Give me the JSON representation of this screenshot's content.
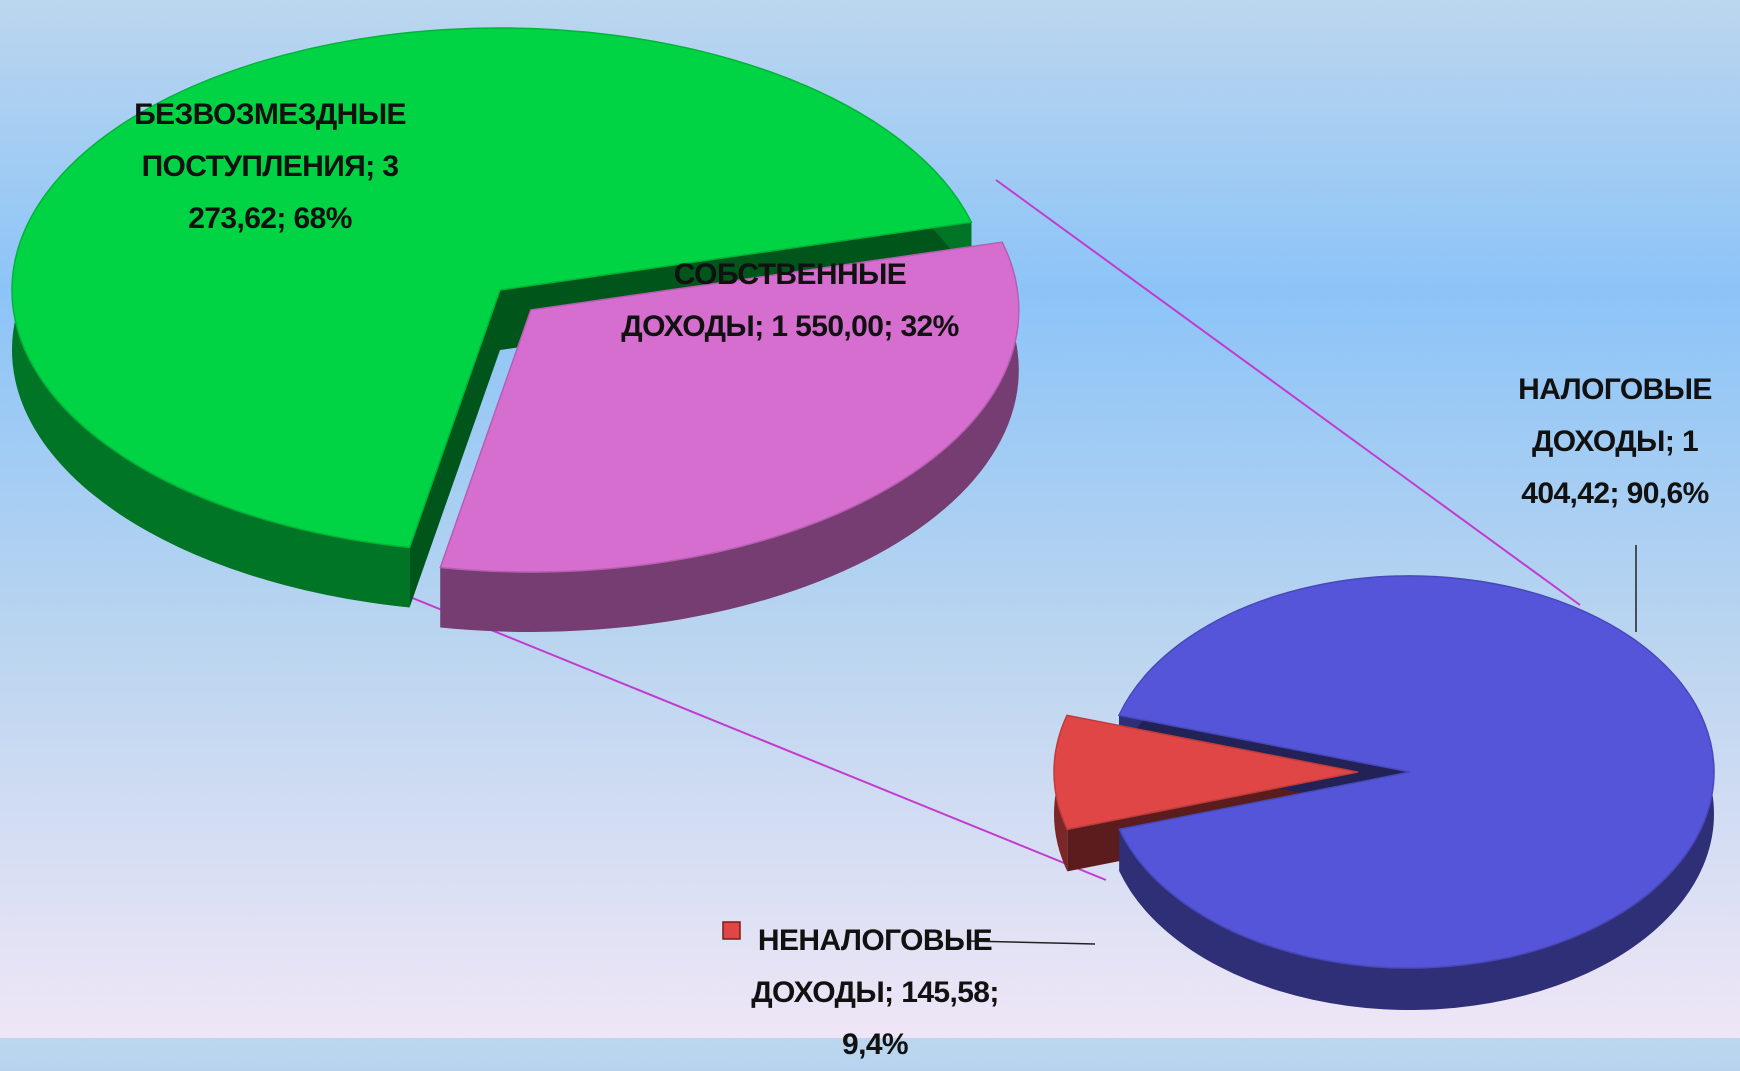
{
  "chart_data": [
    {
      "type": "pie",
      "separator": ";",
      "categories": [
        "БЕЗВОЗМЕЗДНЫЕ ПОСТУПЛЕНИЯ",
        "СОБСТВЕННЫЕ ДОХОДЫ"
      ],
      "values": [
        3273.62,
        1550.0
      ],
      "value_labels": [
        "3 273,62",
        "1 550,00"
      ],
      "percents": [
        68,
        32
      ],
      "percent_labels": [
        "68%",
        "32%"
      ],
      "colors": [
        "#00d444",
        "#d66ed0"
      ]
    },
    {
      "type": "pie",
      "separator": ";",
      "categories": [
        "НАЛОГОВЫЕ ДОХОДЫ",
        "НЕНАЛОГОВЫЕ ДОХОДЫ"
      ],
      "values": [
        1404.42,
        145.58
      ],
      "value_labels": [
        "1 404,42",
        "145,58"
      ],
      "percents": [
        90.6,
        9.4
      ],
      "percent_labels": [
        "90,6%",
        "9,4%"
      ],
      "colors": [
        "#5555da",
        "#e04646"
      ]
    }
  ]
}
